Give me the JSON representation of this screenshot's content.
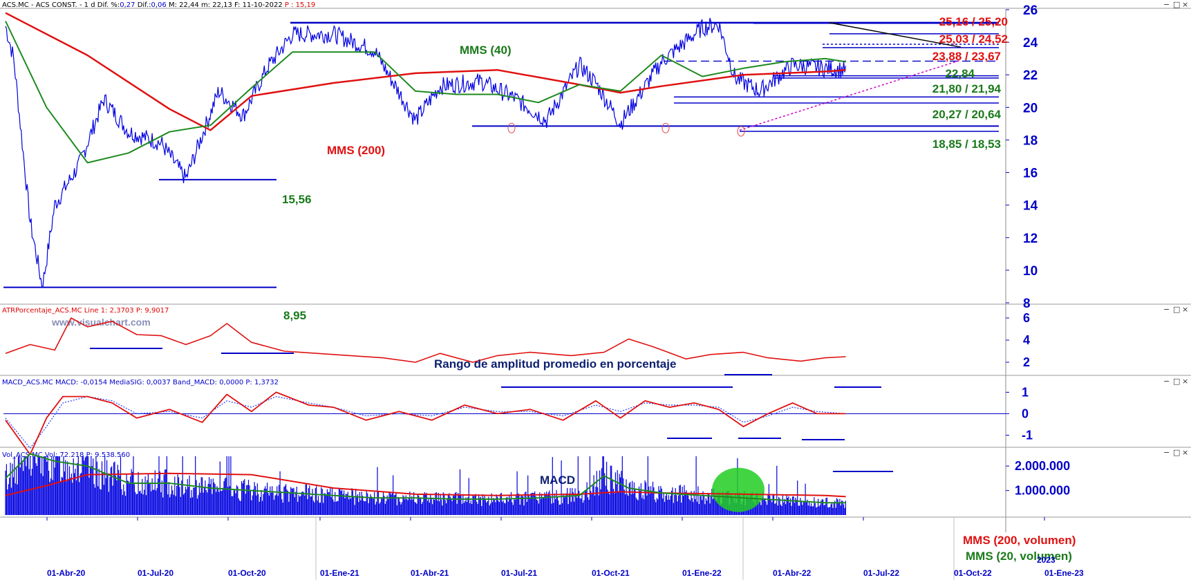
{
  "header": {
    "main": {
      "ticker": "ACS.MC - ACS CONST. -",
      "period": "1 d",
      "difpct_label": "Dif. %:",
      "difpct": "0,27",
      "dif_label": "Dif.:",
      "dif": "0,06",
      "max": "M: 22,44",
      "min": "m: 22,13",
      "date": "F: 11-10-2022",
      "last": "P : 15,19"
    },
    "atr": {
      "name": "ATRPorcentaje_ACS.MC",
      "line1": "Line 1: 2,3703",
      "p": "P: 9,9017"
    },
    "macd": {
      "name": "MACD_ACS.MC",
      "macd": "MACD: -0,0154",
      "mediasig": "MediaSIG: 0,0037",
      "band": "Band_MACD: 0,0000",
      "p": "P: 1,3732"
    },
    "vol": {
      "name": "Vol_ACS.MC",
      "vol": "Vol: 72.218",
      "p": "P: 9.538.560"
    }
  },
  "window_buttons": {
    "minimize": "−",
    "maximize": "□",
    "close": "×",
    "restore": "▭"
  },
  "watermark": "www.visualchart.com",
  "annotations": {
    "mms40": "MMS (40)",
    "mms200": "MMS (200)",
    "lvl_2516": "25,16 / 25,20",
    "lvl_2503": "25,03 / 24,52",
    "lvl_2388": "23,88 / 23,67",
    "lvl_2284": "22,84",
    "lvl_2180": "21,80 / 21,94",
    "lvl_2027": "20,27 / 20,64",
    "lvl_1885": "18,85 / 18,53",
    "lvl_1556": "15,56",
    "lvl_895": "8,95",
    "atr_title": "Rango de amplitud promedio en porcentaje",
    "macd_title": "MACD",
    "vol_mms200": "MMS (200, volumen)",
    "vol_mms20": "MMS (20, volumen)",
    "vol_year": "2023"
  },
  "colors": {
    "price": "#0000e0",
    "mms40": "#1e8a1e",
    "mms200": "#e01010",
    "support": "#0000c8",
    "resistance_red": "#e01010",
    "green_label": "#1a7a1a",
    "highlight": "#22cc22"
  },
  "chart_data": [
    {
      "type": "line",
      "title": "ACS.MC - ACS CONST.",
      "x_labels": [
        "01-Abr-20",
        "01-Jul-20",
        "01-Oct-20",
        "01-Ene-21",
        "01-Abr-21",
        "01-Jul-21",
        "01-Oct-21",
        "01-Ene-22",
        "01-Abr-22",
        "01-Jul-22",
        "01-Oct-22",
        "01-Ene-23"
      ],
      "ylim": [
        8,
        26
      ],
      "yticks": [
        8,
        10,
        12,
        14,
        16,
        18,
        20,
        22,
        24,
        26
      ],
      "series": [
        {
          "name": "MMS (40)",
          "x": [
            0,
            0.5,
            1,
            1.5,
            2,
            2.5,
            3,
            3.5,
            4,
            4.5,
            5,
            5.5,
            6,
            6.5,
            7,
            7.5,
            8,
            8.5,
            9,
            9.5,
            10,
            10.25
          ],
          "values": [
            25.3,
            20.0,
            16.6,
            17.2,
            18.5,
            18.9,
            21.2,
            23.4,
            23.4,
            23.4,
            21.0,
            20.8,
            20.8,
            20.3,
            21.4,
            21.0,
            23.2,
            21.9,
            22.4,
            22.8,
            23.0,
            22.8
          ]
        },
        {
          "name": "MMS (200)",
          "x": [
            0,
            1,
            2,
            2.5,
            3,
            4,
            5,
            6,
            7,
            7.5,
            8,
            9,
            10,
            10.25
          ],
          "values": [
            25.8,
            23.2,
            19.9,
            18.6,
            20.7,
            21.5,
            22.1,
            22.3,
            21.4,
            20.9,
            21.3,
            22.0,
            22.2,
            22.3
          ]
        },
        {
          "name": "ACS.MC",
          "x": [
            0,
            0.1,
            0.3,
            0.45,
            0.6,
            0.9,
            1.2,
            1.5,
            1.9,
            2.2,
            2.6,
            2.9,
            3.2,
            3.5,
            4,
            4.5,
            5,
            5.3,
            5.8,
            6.2,
            6.6,
            7,
            7.2,
            7.5,
            8,
            8.5,
            8.7,
            8.9,
            9.2,
            9.6,
            10,
            10.25
          ],
          "values": [
            25.0,
            23.0,
            13.0,
            8.95,
            14.0,
            16.5,
            20.5,
            18.5,
            17.8,
            15.6,
            21.0,
            19.5,
            22.5,
            24.5,
            24.5,
            23.5,
            19.2,
            21.3,
            21.6,
            20.6,
            19.2,
            22.6,
            21.5,
            19.0,
            22.8,
            24.9,
            25.1,
            21.8,
            21.0,
            22.6,
            22.4,
            22.3
          ]
        }
      ],
      "levels": [
        25.16,
        25.03,
        23.88,
        22.84,
        21.8,
        20.27,
        18.85,
        15.56,
        8.95
      ]
    },
    {
      "type": "line",
      "title": "Rango de amplitud promedio en porcentaje",
      "ylim": [
        1,
        6.5
      ],
      "yticks": [
        2,
        4,
        6
      ],
      "series": [
        {
          "name": "ATRPorcentaje_ACS.MC",
          "x": [
            0,
            0.3,
            0.6,
            0.8,
            1,
            1.3,
            1.6,
            1.9,
            2.2,
            2.5,
            2.7,
            3,
            3.4,
            3.8,
            4.2,
            4.6,
            5,
            5.3,
            5.7,
            6,
            6.4,
            6.9,
            7.3,
            7.6,
            7.9,
            8.3,
            8.6,
            9,
            9.3,
            9.7,
            10,
            10.25
          ],
          "values": [
            2.8,
            3.6,
            3.1,
            6.0,
            5.2,
            5.7,
            4.5,
            4.4,
            3.6,
            4.4,
            5.5,
            3.8,
            3.0,
            2.8,
            2.6,
            2.4,
            2.0,
            2.8,
            2.0,
            2.6,
            2.9,
            2.6,
            2.9,
            4.1,
            3.4,
            2.3,
            2.7,
            2.9,
            2.4,
            2.1,
            2.4,
            2.5
          ]
        }
      ]
    },
    {
      "type": "line",
      "title": "MACD",
      "ylim": [
        -1.5,
        1.4
      ],
      "yticks": [
        -1,
        0,
        1
      ],
      "series": [
        {
          "name": "MACD",
          "x": [
            0,
            0.3,
            0.5,
            0.7,
            1,
            1.3,
            1.6,
            2,
            2.4,
            2.7,
            3,
            3.3,
            3.7,
            4,
            4.4,
            4.8,
            5.2,
            5.6,
            6,
            6.4,
            6.8,
            7.2,
            7.5,
            7.8,
            8.1,
            8.4,
            8.7,
            9,
            9.3,
            9.6,
            9.9,
            10.25
          ],
          "values": [
            -0.3,
            -1.9,
            -0.2,
            0.8,
            0.8,
            0.5,
            -0.2,
            0.2,
            -0.4,
            0.9,
            0.1,
            1.0,
            0.4,
            0.3,
            -0.3,
            0.1,
            -0.3,
            0.4,
            0.0,
            0.2,
            -0.3,
            0.6,
            -0.2,
            0.6,
            0.3,
            0.5,
            0.2,
            -0.6,
            0.0,
            0.5,
            0.0,
            0.0
          ]
        },
        {
          "name": "Media SIG",
          "x": [
            0,
            0.3,
            0.5,
            0.7,
            1,
            1.3,
            1.6,
            2,
            2.4,
            2.7,
            3,
            3.3,
            3.7,
            4,
            4.4,
            4.8,
            5.2,
            5.6,
            6,
            6.4,
            6.8,
            7.2,
            7.5,
            7.8,
            8.1,
            8.4,
            8.7,
            9,
            9.3,
            9.6,
            9.9,
            10.25
          ],
          "values": [
            -0.2,
            -1.6,
            -0.6,
            0.5,
            0.8,
            0.6,
            0.0,
            0.1,
            -0.2,
            0.6,
            0.3,
            0.8,
            0.5,
            0.3,
            -0.1,
            0.0,
            -0.1,
            0.3,
            0.1,
            0.1,
            -0.1,
            0.4,
            0.1,
            0.5,
            0.4,
            0.4,
            0.3,
            -0.4,
            -0.1,
            0.3,
            0.1,
            0.0
          ]
        }
      ]
    },
    {
      "type": "bar",
      "title": "Vol_ACS.MC",
      "ylim": [
        0,
        2400000
      ],
      "yticks": [
        1000000,
        2000000
      ],
      "ytick_labels": [
        "1.000.000",
        "2.000.000"
      ],
      "series": [
        {
          "name": "MMS (200, volumen)",
          "x": [
            0,
            0.5,
            1,
            2,
            3,
            4,
            5,
            6,
            7,
            7.5,
            8,
            9,
            10,
            10.25
          ],
          "values": [
            800000,
            1200000,
            1650000,
            1700000,
            1650000,
            1100000,
            850000,
            800000,
            850000,
            950000,
            900000,
            850000,
            800000,
            750000
          ]
        },
        {
          "name": "MMS (20, volumen)",
          "x": [
            0,
            0.3,
            0.6,
            1,
            1.5,
            2,
            2.5,
            3,
            3.5,
            4,
            4.5,
            5,
            5.5,
            6,
            6.5,
            7,
            7.3,
            7.6,
            8,
            8.5,
            9,
            9.5,
            10,
            10.25
          ],
          "values": [
            1500000,
            2500000,
            2200000,
            2000000,
            1300000,
            1300000,
            1100000,
            1000000,
            900000,
            800000,
            700000,
            700000,
            650000,
            650000,
            700000,
            800000,
            1600000,
            1100000,
            900000,
            800000,
            700000,
            600000,
            500000,
            500000
          ]
        }
      ]
    }
  ]
}
